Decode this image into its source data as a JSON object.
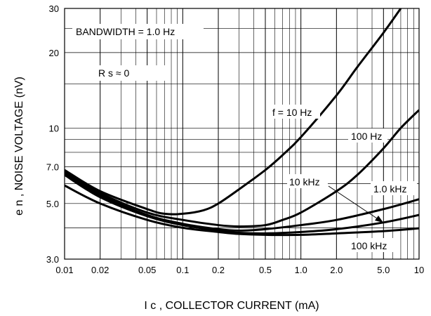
{
  "chart_data": {
    "type": "line",
    "x_scale": "log",
    "y_scale": "log",
    "xlim": [
      0.01,
      10
    ],
    "ylim": [
      3,
      30
    ],
    "grid": true,
    "xlabel": "I c , COLLECTOR CURRENT (mA)",
    "ylabel": "e n , NOISE VOLTAGE (nV)",
    "x_ticks": [
      {
        "value": 0.01,
        "label": "0.01"
      },
      {
        "value": 0.02,
        "label": "0.02"
      },
      {
        "value": 0.05,
        "label": "0.05"
      },
      {
        "value": 0.1,
        "label": "0.1"
      },
      {
        "value": 0.2,
        "label": "0.2"
      },
      {
        "value": 0.5,
        "label": "0.5"
      },
      {
        "value": 1.0,
        "label": "1.0"
      },
      {
        "value": 2.0,
        "label": "2.0"
      },
      {
        "value": 5.0,
        "label": "5.0"
      },
      {
        "value": 10,
        "label": "10"
      }
    ],
    "y_ticks": [
      {
        "value": 3.0,
        "label": "3.0"
      },
      {
        "value": 5.0,
        "label": "5.0"
      },
      {
        "value": 7.0,
        "label": "7.0"
      },
      {
        "value": 10,
        "label": "10"
      },
      {
        "value": 20,
        "label": "20"
      },
      {
        "value": 30,
        "label": "30"
      }
    ],
    "annotations": {
      "bandwidth": "BANDWIDTH = 1.0 Hz",
      "rs": "R s ≈ 0"
    },
    "series": [
      {
        "name": "f = 10 Hz",
        "x": [
          0.01,
          0.02,
          0.05,
          0.07,
          0.1,
          0.15,
          0.2,
          0.3,
          0.5,
          0.7,
          1.0,
          2.0,
          3.0,
          5.0,
          7.0
        ],
        "y": [
          6.8,
          5.6,
          4.75,
          4.55,
          4.55,
          4.7,
          5.0,
          5.7,
          6.8,
          7.8,
          9.2,
          13.5,
          17.5,
          24.0,
          30.0
        ]
      },
      {
        "name": "100 Hz",
        "x": [
          0.01,
          0.02,
          0.05,
          0.1,
          0.2,
          0.3,
          0.5,
          0.7,
          1.0,
          2.0,
          3.0,
          5.0,
          7.0,
          10
        ],
        "y": [
          6.7,
          5.5,
          4.6,
          4.3,
          4.1,
          4.05,
          4.1,
          4.3,
          4.6,
          5.6,
          6.5,
          8.3,
          10.0,
          11.8
        ]
      },
      {
        "name": "1.0 kHz",
        "x": [
          0.01,
          0.02,
          0.05,
          0.1,
          0.2,
          0.3,
          0.5,
          1.0,
          2.0,
          5.0,
          10
        ],
        "y": [
          6.6,
          5.4,
          4.5,
          4.15,
          3.95,
          3.9,
          3.95,
          4.1,
          4.3,
          4.75,
          5.2
        ]
      },
      {
        "name": "10 kHz",
        "x": [
          0.01,
          0.02,
          0.05,
          0.1,
          0.2,
          0.3,
          0.5,
          1.0,
          2.0,
          5.0,
          10
        ],
        "y": [
          6.5,
          5.3,
          4.45,
          4.1,
          3.9,
          3.82,
          3.8,
          3.85,
          3.95,
          4.2,
          4.5
        ]
      },
      {
        "name": "100 kHz",
        "x": [
          0.01,
          0.02,
          0.05,
          0.1,
          0.2,
          0.3,
          0.5,
          1.0,
          2.0,
          5.0,
          10
        ],
        "y": [
          5.9,
          5.0,
          4.3,
          4.0,
          3.85,
          3.78,
          3.75,
          3.75,
          3.8,
          3.88,
          3.98
        ]
      }
    ],
    "curve_labels": [
      {
        "text": "f = 10 Hz"
      },
      {
        "text": "100 Hz"
      },
      {
        "text": "10 kHz"
      },
      {
        "text": "1.0 kHz"
      },
      {
        "text": "100 kHz"
      }
    ]
  }
}
